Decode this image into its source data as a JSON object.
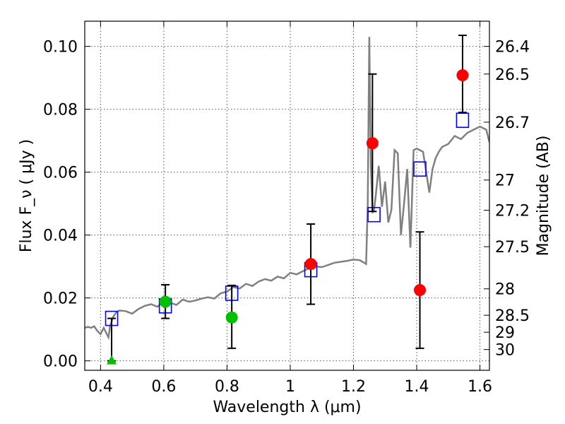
{
  "chart_data": {
    "type": "scatter",
    "xlabel": "Wavelength  λ (μm)",
    "ylabel": "Flux  F_ν  ( μJy )",
    "y2label": "Magnitude (AB)",
    "xlim": [
      0.35,
      1.63
    ],
    "ylim": [
      -0.003,
      0.108
    ],
    "grid": true,
    "x_ticks": [
      0.4,
      0.6,
      0.8,
      1.0,
      1.2,
      1.4,
      1.6
    ],
    "x_tick_labels": [
      "0.4",
      "0.6",
      "0.8",
      "1",
      "1.2",
      "1.4",
      "1.6"
    ],
    "y_ticks": [
      0.0,
      0.02,
      0.04,
      0.06,
      0.08,
      0.1
    ],
    "y_tick_labels": [
      "0.00",
      "0.02",
      "0.04",
      "0.06",
      "0.08",
      "0.10"
    ],
    "y2_ticks": [
      {
        "label": "26.4",
        "flux": 0.1
      },
      {
        "label": "26.5",
        "flux": 0.0912
      },
      {
        "label": "26.7",
        "flux": 0.0759
      },
      {
        "label": "27",
        "flux": 0.0575
      },
      {
        "label": "27.2",
        "flux": 0.0479
      },
      {
        "label": "27.5",
        "flux": 0.0363
      },
      {
        "label": "28",
        "flux": 0.0229
      },
      {
        "label": "28.5",
        "flux": 0.0145
      },
      {
        "label": "29",
        "flux": 0.0091
      },
      {
        "label": "30",
        "flux": 0.0036
      }
    ],
    "model_spectrum": {
      "color": "#808080",
      "x": [
        0.35,
        0.36,
        0.37,
        0.38,
        0.39,
        0.4,
        0.41,
        0.42,
        0.425,
        0.43,
        0.44,
        0.45,
        0.46,
        0.48,
        0.5,
        0.52,
        0.54,
        0.56,
        0.58,
        0.6,
        0.62,
        0.64,
        0.66,
        0.68,
        0.7,
        0.72,
        0.74,
        0.76,
        0.78,
        0.8,
        0.82,
        0.84,
        0.86,
        0.88,
        0.9,
        0.92,
        0.94,
        0.96,
        0.98,
        1.0,
        1.02,
        1.04,
        1.06,
        1.08,
        1.1,
        1.12,
        1.14,
        1.16,
        1.18,
        1.2,
        1.22,
        1.24,
        1.245,
        1.25,
        1.255,
        1.26,
        1.265,
        1.27,
        1.28,
        1.29,
        1.3,
        1.31,
        1.32,
        1.33,
        1.34,
        1.35,
        1.36,
        1.37,
        1.38,
        1.39,
        1.4,
        1.42,
        1.43,
        1.44,
        1.45,
        1.46,
        1.47,
        1.48,
        1.5,
        1.52,
        1.54,
        1.56,
        1.58,
        1.6,
        1.62,
        1.63
      ],
      "y": [
        0.0105,
        0.0108,
        0.0105,
        0.011,
        0.0095,
        0.0085,
        0.0105,
        0.0085,
        0.0075,
        0.011,
        0.014,
        0.0155,
        0.016,
        0.0158,
        0.015,
        0.0165,
        0.0175,
        0.018,
        0.0172,
        0.019,
        0.0185,
        0.0178,
        0.0195,
        0.0188,
        0.0192,
        0.0198,
        0.0202,
        0.0198,
        0.0215,
        0.022,
        0.0235,
        0.023,
        0.0245,
        0.0238,
        0.0252,
        0.026,
        0.0255,
        0.0268,
        0.0262,
        0.028,
        0.0275,
        0.0285,
        0.0295,
        0.03,
        0.0298,
        0.0305,
        0.0312,
        0.0315,
        0.0318,
        0.0322,
        0.032,
        0.0308,
        0.05,
        0.103,
        0.062,
        0.047,
        0.048,
        0.052,
        0.062,
        0.049,
        0.057,
        0.044,
        0.048,
        0.067,
        0.066,
        0.04,
        0.05,
        0.061,
        0.036,
        0.067,
        0.0675,
        0.0665,
        0.06,
        0.0535,
        0.061,
        0.0645,
        0.0665,
        0.068,
        0.069,
        0.0715,
        0.0705,
        0.0725,
        0.0735,
        0.0745,
        0.0735,
        0.0695
      ]
    },
    "series": [
      {
        "marker": "open-square",
        "color": "#0000ff",
        "x": [
          0.435,
          0.605,
          0.815,
          1.065,
          1.265,
          1.41,
          1.545
        ],
        "y": [
          0.0135,
          0.0175,
          0.0215,
          0.029,
          0.0465,
          0.061,
          0.0765
        ]
      },
      {
        "marker": "circle",
        "color": "#ff0000",
        "x": [
          1.065,
          1.26,
          1.41,
          1.545
        ],
        "y": [
          0.0308,
          0.0692,
          0.0225,
          0.0908
        ],
        "yerr_low": [
          0.018,
          0.0475,
          0.004,
          0.079
        ],
        "yerr_high": [
          0.0435,
          0.0912,
          0.041,
          0.1035
        ]
      },
      {
        "marker": "circle",
        "color": "#00c000",
        "x": [
          0.605,
          0.815
        ],
        "y": [
          0.0188,
          0.0138
        ],
        "yerr_low": [
          0.0135,
          0.004
        ],
        "yerr_high": [
          0.0242,
          0.024
        ]
      },
      {
        "marker": "triangle",
        "color": "#00c000",
        "x": [
          0.435
        ],
        "y": [
          0.0
        ],
        "yerr_low": [
          0.0
        ],
        "yerr_high": [
          0.0135
        ]
      }
    ]
  }
}
